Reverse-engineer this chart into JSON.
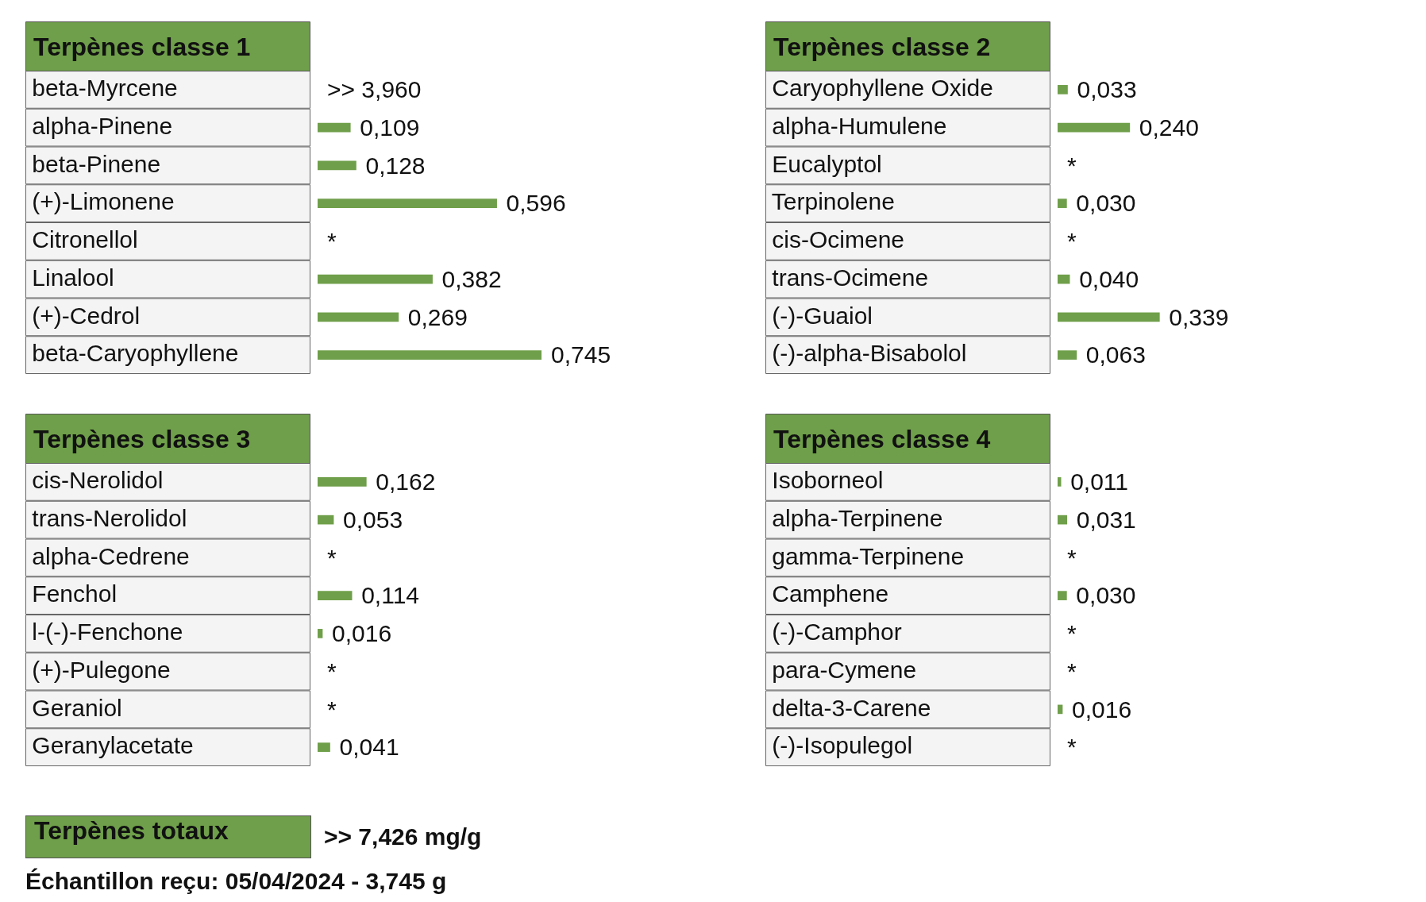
{
  "chart_data": [
    {
      "type": "bar",
      "orientation": "horizontal",
      "title": "Terpènes classe 1",
      "categories": [
        "beta-Myrcene",
        "alpha-Pinene",
        "beta-Pinene",
        "(+)-Limonene",
        "Citronellol",
        "Linalool",
        "(+)-Cedrol",
        "beta-Caryophyllene"
      ],
      "values": [
        null,
        0.109,
        0.128,
        0.596,
        null,
        0.382,
        0.269,
        0.745
      ],
      "value_labels": [
        ">> 3,960",
        "0,109",
        "0,128",
        "0,596",
        "*",
        "0,382",
        "0,269",
        "0,745"
      ],
      "color": "#6f9f4a",
      "tick_labels": "y"
    },
    {
      "type": "bar",
      "orientation": "horizontal",
      "title": "Terpènes classe 2",
      "categories": [
        "Caryophyllene Oxide",
        "alpha-Humulene",
        "Eucalyptol",
        "Terpinolene",
        "cis-Ocimene",
        "trans-Ocimene",
        "(-)-Guaiol",
        "(-)-alpha-Bisabolol"
      ],
      "values": [
        0.033,
        0.24,
        null,
        0.03,
        null,
        0.04,
        0.339,
        0.063
      ],
      "value_labels": [
        "0,033",
        "0,240",
        "*",
        "0,030",
        "*",
        "0,040",
        "0,339",
        "0,063"
      ],
      "color": "#6f9f4a",
      "tick_labels": "y"
    },
    {
      "type": "bar",
      "orientation": "horizontal",
      "title": "Terpènes classe 3",
      "categories": [
        "cis-Nerolidol",
        "trans-Nerolidol",
        "alpha-Cedrene",
        "Fenchol",
        "l-(-)-Fenchone",
        "(+)-Pulegone",
        "Geraniol",
        "Geranylacetate"
      ],
      "values": [
        0.162,
        0.053,
        null,
        0.114,
        0.016,
        null,
        null,
        0.041
      ],
      "value_labels": [
        "0,162",
        "0,053",
        "*",
        "0,114",
        "0,016",
        "*",
        "*",
        "0,041"
      ],
      "color": "#6f9f4a",
      "tick_labels": "y"
    },
    {
      "type": "bar",
      "orientation": "horizontal",
      "title": "Terpènes classe 4",
      "categories": [
        "Isoborneol",
        "alpha-Terpinene",
        "gamma-Terpinene",
        "Camphene",
        "(-)-Camphor",
        "para-Cymene",
        "delta-3-Carene",
        "(-)-Isopulegol"
      ],
      "values": [
        0.011,
        0.031,
        null,
        0.03,
        null,
        null,
        0.016,
        null
      ],
      "value_labels": [
        "0,011",
        "0,031",
        "*",
        "0,030",
        "*",
        "*",
        "0,016",
        "*"
      ],
      "color": "#6f9f4a",
      "tick_labels": "y"
    },
    {
      "type": "other",
      "title": "Terpènes totaux",
      "color": "#6f9f4a",
      "annotations": [
        ">> 7,426 mg/g",
        "Échantillon reçu: 05/04/2024 - 3,745 g"
      ]
    }
  ]
}
